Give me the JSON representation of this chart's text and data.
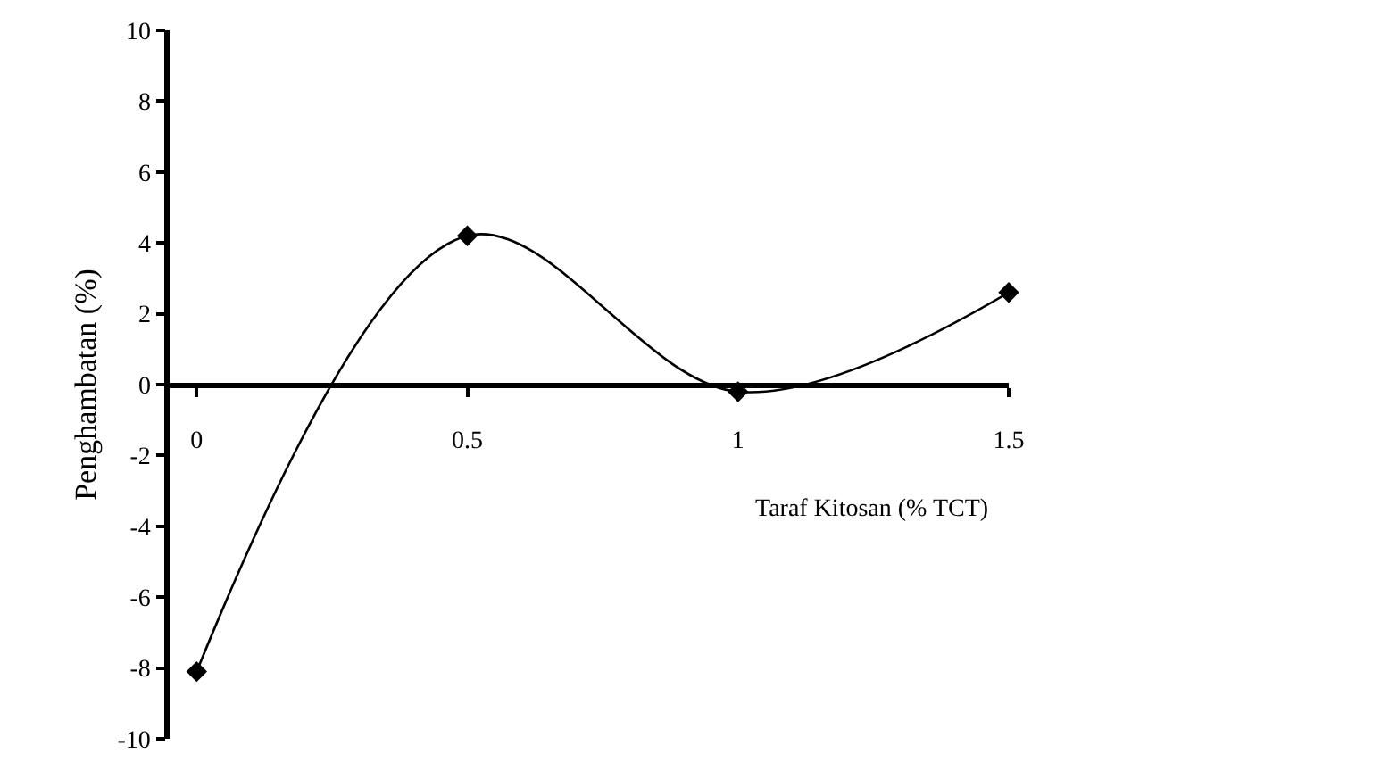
{
  "chart_data": {
    "type": "line",
    "xlabel": "Taraf Kitosan (% TCT)",
    "ylabel": "Penghambatan (%)",
    "x": [
      0,
      0.5,
      1,
      1.5
    ],
    "series": [
      {
        "color": "#000000",
        "values": [
          -8.1,
          4.2,
          -0.2,
          2.6
        ]
      }
    ],
    "xlim": [
      -0.05,
      1.5
    ],
    "xticks": [
      0,
      0.5,
      1,
      1.5
    ],
    "ylim": [
      -10,
      10
    ],
    "yticks": [
      -10,
      -8,
      -6,
      -4,
      -2,
      0,
      2,
      4,
      6,
      8,
      10
    ],
    "marker": "diamond"
  }
}
